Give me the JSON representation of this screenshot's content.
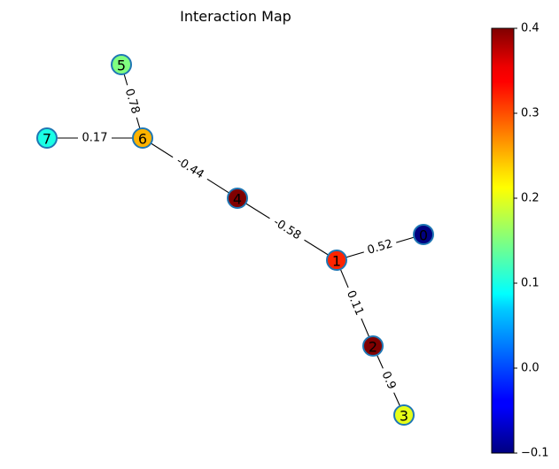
{
  "title": "Interaction Map",
  "colorbar": {
    "min": -0.1,
    "max": 0.4,
    "ticks": [
      {
        "value": -0.1,
        "label": "−0.1"
      },
      {
        "value": 0.0,
        "label": "0.0"
      },
      {
        "value": 0.1,
        "label": "0.1"
      },
      {
        "value": 0.2,
        "label": "0.2"
      },
      {
        "value": 0.3,
        "label": "0.3"
      },
      {
        "value": 0.4,
        "label": "0.4"
      }
    ]
  },
  "nodes": [
    {
      "id": "0",
      "label": "0",
      "value": -0.1
    },
    {
      "id": "1",
      "label": "1",
      "value": 0.32
    },
    {
      "id": "2",
      "label": "2",
      "value": 0.4
    },
    {
      "id": "3",
      "label": "3",
      "value": 0.2
    },
    {
      "id": "4",
      "label": "4",
      "value": 0.4
    },
    {
      "id": "5",
      "label": "5",
      "value": 0.15
    },
    {
      "id": "6",
      "label": "6",
      "value": 0.25
    },
    {
      "id": "7",
      "label": "7",
      "value": 0.1
    }
  ],
  "edges": [
    {
      "source": "5",
      "target": "6",
      "label": "0.78"
    },
    {
      "source": "7",
      "target": "6",
      "label": "0.17"
    },
    {
      "source": "6",
      "target": "4",
      "label": "-0.44"
    },
    {
      "source": "4",
      "target": "1",
      "label": "-0.58"
    },
    {
      "source": "1",
      "target": "0",
      "label": "0.52"
    },
    {
      "source": "1",
      "target": "2",
      "label": "0.11"
    },
    {
      "source": "2",
      "target": "3",
      "label": "0.9"
    }
  ]
}
